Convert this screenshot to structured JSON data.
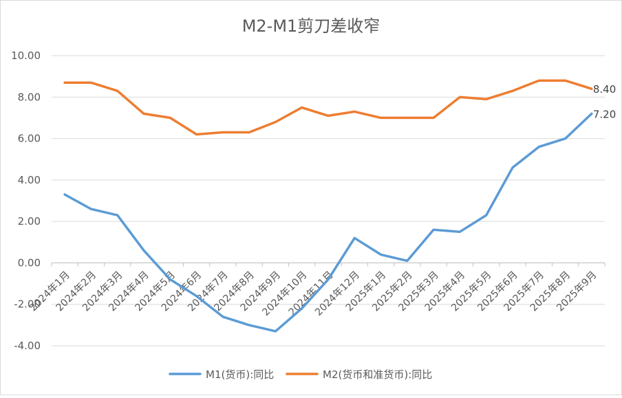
{
  "chart_data": {
    "type": "line",
    "title": "M2-M1剪刀差收窄",
    "categories": [
      "2024年1月",
      "2024年2月",
      "2024年3月",
      "2024年4月",
      "2024年5月",
      "2024年6月",
      "2024年7月",
      "2024年8月",
      "2024年9月",
      "2024年10月",
      "2024年11月",
      "2024年12月",
      "2025年1月",
      "2025年2月",
      "2025年3月",
      "2025年4月",
      "2025年5月",
      "2025年6月",
      "2025年7月",
      "2025年8月",
      "2025年9月"
    ],
    "series": [
      {
        "name": "M1(货币):同比",
        "color": "#5b9bd5",
        "values": [
          3.3,
          2.6,
          2.3,
          0.6,
          -0.8,
          -1.6,
          -2.6,
          -3.0,
          -3.3,
          -2.2,
          -0.8,
          1.2,
          0.4,
          0.1,
          1.6,
          1.5,
          2.3,
          4.6,
          5.6,
          6.0,
          7.2
        ],
        "end_label": "7.20"
      },
      {
        "name": "M2(货币和准货币):同比",
        "color": "#ed7d31",
        "values": [
          8.7,
          8.7,
          8.3,
          7.2,
          7.0,
          6.2,
          6.3,
          6.3,
          6.8,
          7.5,
          7.1,
          7.3,
          7.0,
          7.0,
          7.0,
          8.0,
          7.9,
          8.3,
          8.8,
          8.8,
          8.4
        ],
        "end_label": "8.40"
      }
    ],
    "ylim": [
      -4,
      10
    ],
    "yticks": [
      "-4.00",
      "-2.00",
      "0.00",
      "2.00",
      "4.00",
      "6.00",
      "8.00",
      "10.00"
    ],
    "grid": true,
    "legend_position": "bottom",
    "xlabel": "",
    "ylabel": ""
  }
}
